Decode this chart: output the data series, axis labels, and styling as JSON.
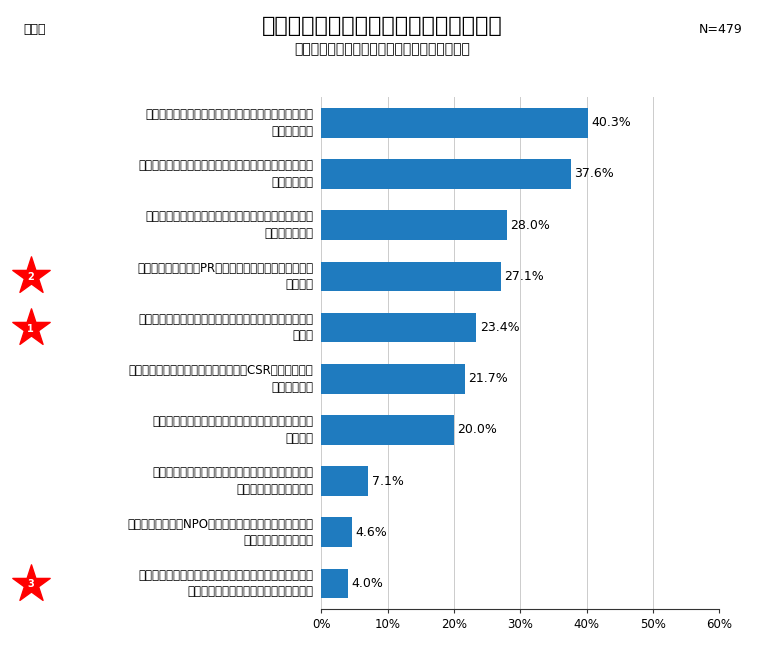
{
  "title": "情報創造力に関する企業の広報活動実態",
  "subtitle": "（情報創造力の１０設問から主要設問を抜粋）",
  "chart_label": "図表２",
  "n_label": "N=479",
  "categories": [
    "自社や自社商品・サービスについて、報道向け資料を\n整備している",
    "広報戦略に沿った、広報素材（データ、ファクト等）を\n準備している",
    "ビジュアルやグラフィックなどを駆使した広報ツール\nを作成している",
    "広報戦略に沿った、PRメッセージ・ストーリーを策定\nしている",
    "トップのメッセージを専門的に作成する社内・外の体制\nがある",
    "広報的視点を重視した、事業活動や、CSR活動を企画・\n実施している",
    "デジタルの特性に合わせた広報素材・情報づくりを\nしている",
    "口コミで拡散するようなバイラルムービー・動画を\n広報活動に活用している",
    "自社だけでなく、NPOや調査機関と連携し、広報素材・\n情報づくりをしている",
    "トップのプレゼンテーション力・表現力を強化するため\nのトレーニングを定期的に実施している"
  ],
  "values": [
    40.3,
    37.6,
    28.0,
    27.1,
    23.4,
    21.7,
    20.0,
    7.1,
    4.6,
    4.0
  ],
  "bar_color": "#1f7bbf",
  "xlim": [
    0,
    60
  ],
  "xticks": [
    0,
    10,
    20,
    30,
    40,
    50,
    60
  ],
  "xtick_labels": [
    "0%",
    "10%",
    "20%",
    "30%",
    "40%",
    "50%",
    "60%"
  ],
  "star_indices": [
    3,
    4,
    9
  ],
  "star_numbers": [
    "2",
    "1",
    "3"
  ],
  "background_color": "#ffffff",
  "font_size_title": 16,
  "font_size_subtitle": 10,
  "font_size_chart_label": 9,
  "font_size_n": 9,
  "font_size_category": 8.5,
  "font_size_value": 9,
  "font_size_axis": 8.5
}
